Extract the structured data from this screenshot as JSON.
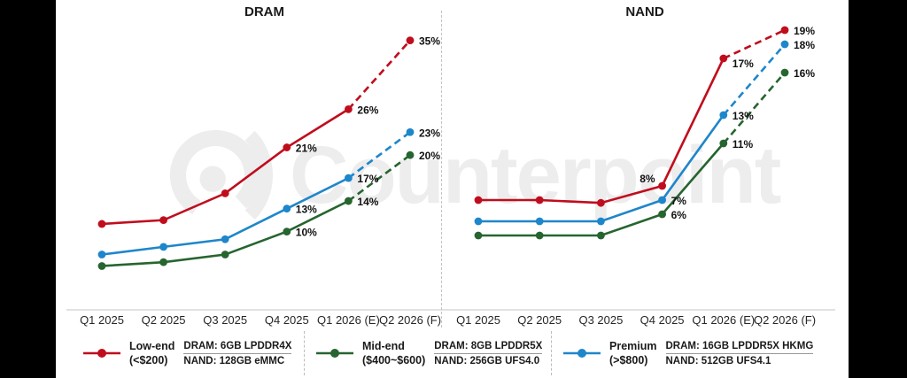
{
  "watermark": {
    "text": "Counterpoint"
  },
  "chart_data": [
    {
      "id": "dram",
      "type": "line",
      "title": "DRAM",
      "x": [
        "Q1 2025",
        "Q2 2025",
        "Q3 2025",
        "Q4 2025",
        "Q1 2026 (E)",
        "Q2 2026 (F)"
      ],
      "unit": "%",
      "ylim": [
        0,
        40
      ],
      "grid": false,
      "data_labels_shown_from": "Q4 2025",
      "series": [
        {
          "name": "Low-end (<$200)",
          "color": "#c00d1d",
          "values": [
            11,
            11.5,
            15,
            21,
            26,
            35
          ],
          "labels_from_index": 3,
          "dashed_from_index": 4
        },
        {
          "name": "Mid-end ($400~$600)",
          "color": "#26652f",
          "values": [
            5.5,
            6,
            7,
            10,
            14,
            20
          ],
          "labels_from_index": 3,
          "dashed_from_index": 4
        },
        {
          "name": "Premium (>$800)",
          "color": "#1e86ca",
          "values": [
            7,
            8,
            9,
            13,
            17,
            23
          ],
          "labels_from_index": 3,
          "dashed_from_index": 4
        }
      ]
    },
    {
      "id": "nand",
      "type": "line",
      "title": "NAND",
      "x": [
        "Q1 2025",
        "Q2 2025",
        "Q3 2025",
        "Q4 2025",
        "Q1 2026 (E)",
        "Q2 2026 (F)"
      ],
      "unit": "%",
      "ylim": [
        0,
        21
      ],
      "grid": false,
      "data_labels_shown_from": "Q4 2025",
      "series": [
        {
          "name": "Low-end (<$200)",
          "color": "#c00d1d",
          "values": [
            7,
            7,
            6.8,
            8,
            17,
            19
          ],
          "labels_from_index": 3,
          "dashed_from_index": 4
        },
        {
          "name": "Mid-end ($400~$600)",
          "color": "#26652f",
          "values": [
            4.5,
            4.5,
            4.5,
            6,
            11,
            16
          ],
          "labels_from_index": 3,
          "dashed_from_index": 4
        },
        {
          "name": "Premium (>$800)",
          "color": "#1e86ca",
          "values": [
            5.5,
            5.5,
            5.5,
            7,
            13,
            18
          ],
          "labels_from_index": 3,
          "dashed_from_index": 4
        }
      ]
    }
  ],
  "legend": {
    "items": [
      {
        "name_line1": "Low-end",
        "name_line2": "(<$200)",
        "color": "#c00d1d",
        "dram_spec": "DRAM: 6GB LPDDR4X",
        "nand_spec": "NAND: 128GB eMMC"
      },
      {
        "name_line1": "Mid-end",
        "name_line2": "($400~$600)",
        "color": "#26652f",
        "dram_spec": "DRAM: 8GB LPDDR5X",
        "nand_spec": "NAND: 256GB UFS4.0"
      },
      {
        "name_line1": "Premium",
        "name_line2": "(>$800)",
        "color": "#1e86ca",
        "dram_spec": "DRAM: 16GB LPDDR5X HKMG",
        "nand_spec": "NAND: 512GB UFS4.1"
      }
    ]
  }
}
